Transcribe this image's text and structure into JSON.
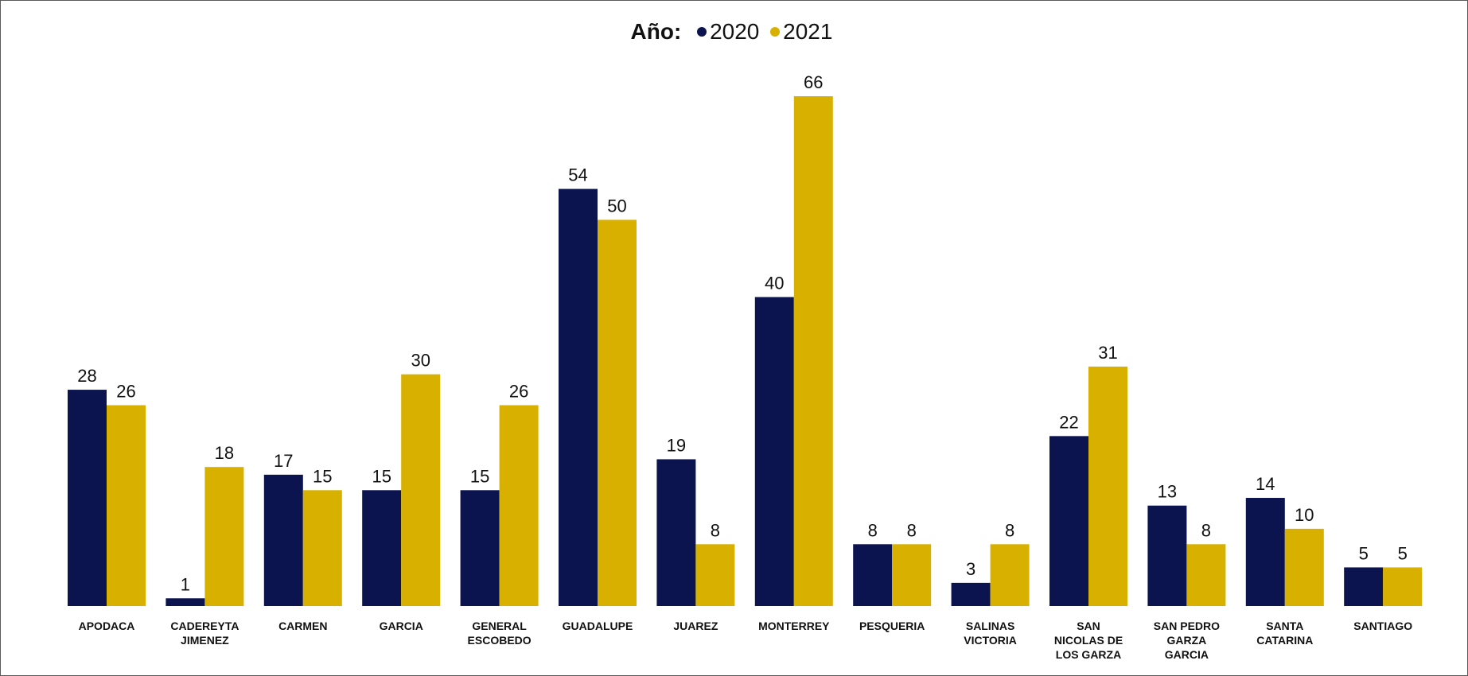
{
  "chart_data": {
    "type": "bar",
    "legend_title": "Año:",
    "legend_position": "top-center",
    "categories": [
      [
        "APODACA"
      ],
      [
        "CADEREYTA",
        "JIMENEZ"
      ],
      [
        "CARMEN"
      ],
      [
        "GARCIA"
      ],
      [
        "GENERAL",
        "ESCOBEDO"
      ],
      [
        "GUADALUPE"
      ],
      [
        "JUAREZ"
      ],
      [
        "MONTERREY"
      ],
      [
        "PESQUERIA"
      ],
      [
        "SALINAS",
        "VICTORIA"
      ],
      [
        "SAN",
        "NICOLAS DE",
        "LOS GARZA"
      ],
      [
        "SAN PEDRO",
        "GARZA",
        "GARCIA"
      ],
      [
        "SANTA",
        "CATARINA"
      ],
      [
        "SANTIAGO"
      ]
    ],
    "series": [
      {
        "name": "2020",
        "color": "#0c1450",
        "values": [
          28,
          1,
          17,
          15,
          15,
          54,
          19,
          40,
          8,
          3,
          22,
          13,
          14,
          5
        ]
      },
      {
        "name": "2021",
        "color": "#d8b100",
        "values": [
          26,
          18,
          15,
          30,
          26,
          50,
          8,
          66,
          8,
          8,
          31,
          8,
          10,
          5
        ]
      }
    ],
    "ylim": [
      0,
      66
    ],
    "grid": false,
    "data_labels": true
  }
}
